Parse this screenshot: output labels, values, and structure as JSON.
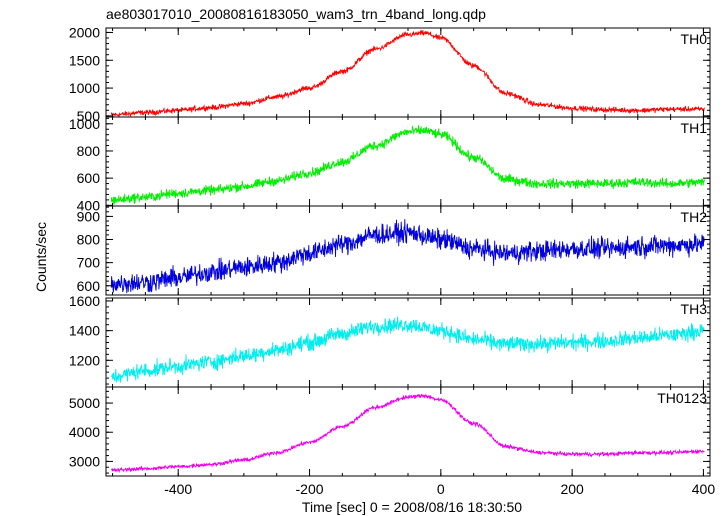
{
  "chart_data": {
    "type": "line",
    "title": "ae803017010_20080816183050_wam3_trn_4band_long.qdp",
    "xlabel": "Time [sec] 0 = 2008/08/16 18:30:50",
    "ylabel": "Counts/sec",
    "xlim": [
      -510,
      410
    ],
    "x_ticks": [
      -400,
      -200,
      0,
      200,
      400
    ],
    "panels": [
      {
        "name": "TH0",
        "color": "#ff0000",
        "ylim": [
          480,
          2080
        ],
        "y_ticks": [
          500,
          1000,
          1500,
          2000
        ],
        "x": [
          -500,
          -450,
          -400,
          -350,
          -300,
          -250,
          -200,
          -150,
          -100,
          -50,
          -25,
          0,
          50,
          100,
          150,
          200,
          250,
          300,
          350,
          400
        ],
        "values": [
          520,
          560,
          600,
          650,
          720,
          840,
          1000,
          1300,
          1700,
          1960,
          1990,
          1900,
          1400,
          900,
          700,
          640,
          610,
          600,
          620,
          620
        ],
        "noise": 40
      },
      {
        "name": "TH1",
        "color": "#00ee00",
        "ylim": [
          395,
          1050
        ],
        "y_ticks": [
          400,
          600,
          800,
          1000
        ],
        "x": [
          -500,
          -450,
          -400,
          -350,
          -300,
          -250,
          -200,
          -150,
          -100,
          -50,
          -25,
          0,
          50,
          100,
          150,
          200,
          250,
          300,
          350,
          400
        ],
        "values": [
          440,
          460,
          490,
          510,
          540,
          580,
          640,
          720,
          840,
          940,
          950,
          920,
          750,
          590,
          560,
          560,
          560,
          570,
          560,
          570
        ],
        "noise": 30
      },
      {
        "name": "TH2",
        "color": "#0000dd",
        "ylim": [
          560,
          945
        ],
        "y_ticks": [
          600,
          700,
          800,
          900
        ],
        "x": [
          -500,
          -450,
          -400,
          -350,
          -300,
          -250,
          -200,
          -150,
          -100,
          -50,
          0,
          50,
          100,
          150,
          200,
          250,
          300,
          350,
          400
        ],
        "values": [
          610,
          615,
          635,
          660,
          680,
          700,
          740,
          780,
          820,
          830,
          800,
          760,
          740,
          750,
          760,
          760,
          770,
          775,
          780
        ],
        "noise": 38
      },
      {
        "name": "TH3",
        "color": "#00eeee",
        "ylim": [
          1020,
          1620
        ],
        "y_ticks": [
          1200,
          1400,
          1600
        ],
        "x": [
          -500,
          -450,
          -400,
          -350,
          -300,
          -250,
          -200,
          -150,
          -100,
          -50,
          0,
          50,
          100,
          150,
          200,
          250,
          300,
          350,
          400
        ],
        "values": [
          1090,
          1130,
          1160,
          1190,
          1230,
          1270,
          1320,
          1380,
          1430,
          1440,
          1400,
          1340,
          1310,
          1310,
          1320,
          1330,
          1350,
          1370,
          1400
        ],
        "noise": 45
      },
      {
        "name": "TH0123",
        "color": "#ee00ee",
        "ylim": [
          2500,
          5550
        ],
        "y_ticks": [
          3000,
          4000,
          5000
        ],
        "x": [
          -500,
          -450,
          -400,
          -350,
          -300,
          -250,
          -200,
          -150,
          -100,
          -50,
          -25,
          0,
          50,
          100,
          150,
          200,
          250,
          300,
          350,
          400
        ],
        "values": [
          2700,
          2750,
          2820,
          2900,
          3050,
          3300,
          3650,
          4200,
          4850,
          5200,
          5250,
          5100,
          4300,
          3500,
          3300,
          3250,
          3250,
          3300,
          3300,
          3350
        ],
        "noise": 55
      }
    ]
  }
}
